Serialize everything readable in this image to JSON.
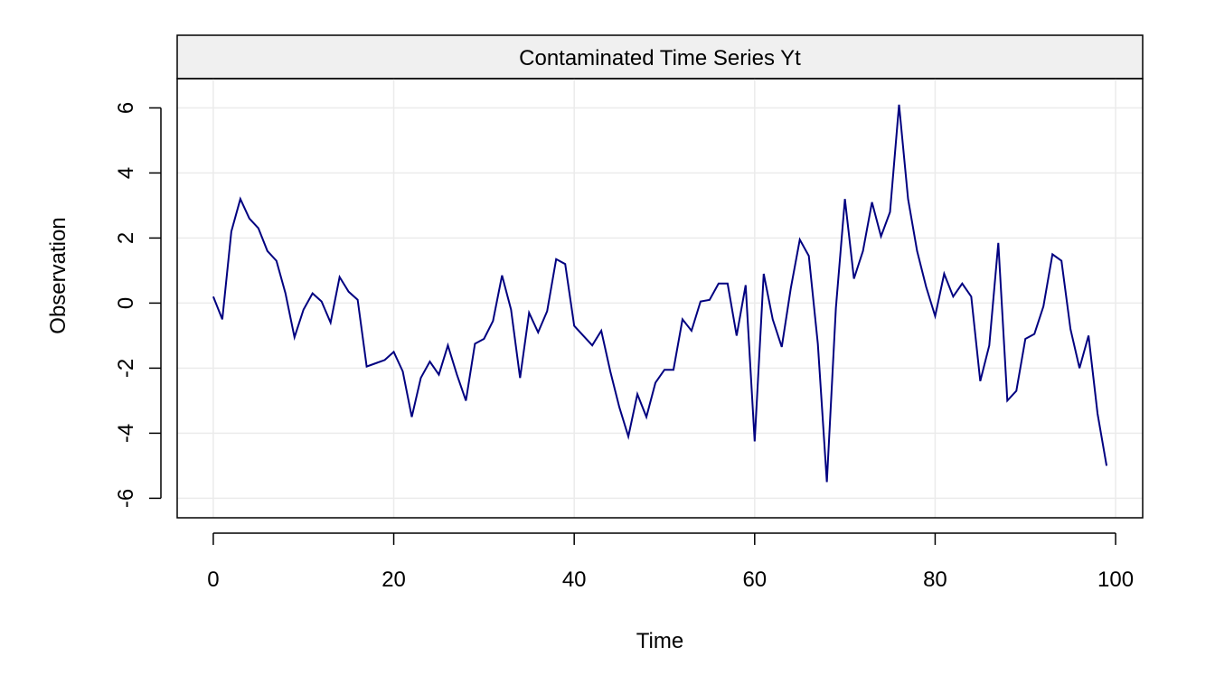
{
  "chart_data": {
    "type": "line",
    "title": "Contaminated Time Series Yt",
    "xlabel": "Time",
    "ylabel": "Observation",
    "xlim": [
      -4,
      103
    ],
    "ylim": [
      -6.6,
      6.9
    ],
    "xticks": [
      0,
      20,
      40,
      60,
      80,
      100
    ],
    "yticks": [
      -6,
      -4,
      -2,
      0,
      2,
      4,
      6
    ],
    "grid": true,
    "colors": {
      "line": "#000080",
      "grid": "#ebebeb",
      "strip": "#f0f0f0",
      "frame": "#000000"
    },
    "series": [
      {
        "x": [
          0,
          1,
          2,
          3,
          4,
          5,
          6,
          7,
          8,
          9,
          10,
          11,
          12,
          13,
          14,
          15,
          16,
          17,
          18,
          19,
          20,
          21,
          22,
          23,
          24,
          25,
          26,
          27,
          28,
          29,
          30,
          31,
          32,
          33,
          34,
          35,
          36,
          37,
          38,
          39,
          40,
          41,
          42,
          43,
          44,
          45,
          46,
          47,
          48,
          49,
          50,
          51,
          52,
          53,
          54,
          55,
          56,
          57,
          58,
          59,
          60,
          61,
          62,
          63,
          64,
          65,
          66,
          67,
          68,
          69,
          70,
          71,
          72,
          73,
          74,
          75,
          76,
          77,
          78,
          79,
          80,
          81,
          82,
          83,
          84,
          85,
          86,
          87,
          88,
          89,
          90,
          91,
          92,
          93,
          94,
          95,
          96,
          97,
          98,
          99
        ],
        "values": [
          0.2,
          -0.5,
          2.2,
          3.2,
          2.6,
          2.3,
          1.6,
          1.3,
          0.3,
          -1.05,
          -0.2,
          0.3,
          0.05,
          -0.6,
          0.8,
          0.35,
          0.1,
          -1.95,
          -1.85,
          -1.75,
          -1.5,
          -2.1,
          -3.5,
          -2.3,
          -1.8,
          -2.2,
          -1.3,
          -2.2,
          -3.0,
          -1.25,
          -1.1,
          -0.55,
          0.85,
          -0.2,
          -2.3,
          -0.3,
          -0.9,
          -0.25,
          1.35,
          1.2,
          -0.7,
          -1.0,
          -1.3,
          -0.85,
          -2.1,
          -3.2,
          -4.1,
          -2.8,
          -3.5,
          -2.45,
          -2.05,
          -2.05,
          -0.5,
          -0.85,
          0.05,
          0.1,
          0.6,
          0.6,
          -1.0,
          0.55,
          -4.25,
          0.9,
          -0.5,
          -1.35,
          0.45,
          1.95,
          1.45,
          -1.25,
          -5.5,
          -0.15,
          3.2,
          0.75,
          1.6,
          3.1,
          2.05,
          2.8,
          6.1,
          3.2,
          1.6,
          0.5,
          -0.4,
          0.9,
          0.2,
          0.6,
          0.2,
          -2.4,
          -1.3,
          1.85,
          -3.0,
          -2.7,
          -1.1,
          -0.95,
          -0.1,
          1.5,
          1.3,
          -0.8,
          -2.0,
          -1.0,
          -3.4,
          -5.0
        ]
      }
    ]
  }
}
